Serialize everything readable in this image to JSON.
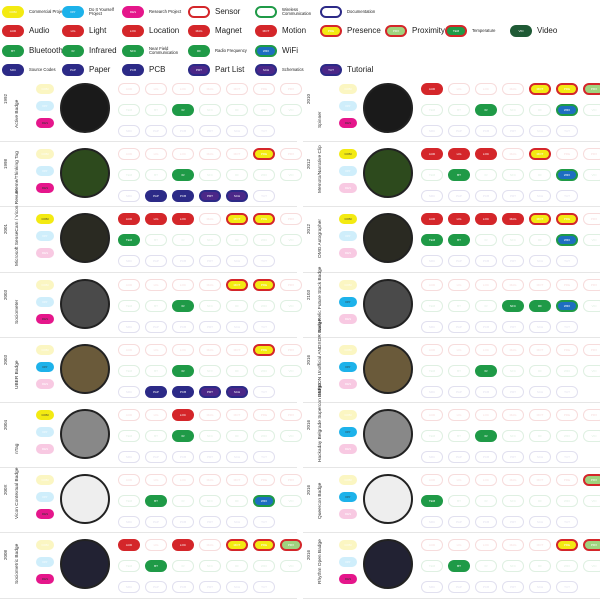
{
  "legend": [
    {
      "abbr": "COM",
      "label": "Commercial Project",
      "size": "small",
      "fill": "#f3ea12",
      "stroke": "#f3ea12"
    },
    {
      "abbr": "DIY",
      "label": "Do It Yourself Project",
      "size": "small",
      "fill": "#1db2ea",
      "stroke": "#1db2ea"
    },
    {
      "abbr": "RES",
      "label": "Research Project",
      "size": "small",
      "fill": "#e5168b",
      "stroke": "#e5168b"
    },
    {
      "abbr": "",
      "label": "Sensor",
      "size": "big",
      "fill": "#ffffff",
      "stroke": "#d4262a"
    },
    {
      "abbr": "",
      "label": "Wireless Communication",
      "size": "small",
      "fill": "#ffffff",
      "stroke": "#1f9a47"
    },
    {
      "abbr": "",
      "label": "Documentation",
      "size": "small",
      "fill": "#ffffff",
      "stroke": "#2c2a87"
    },
    {
      "abbr": "AUD",
      "label": "Audio",
      "size": "big",
      "fill": "#d4262a",
      "stroke": "#d4262a"
    },
    {
      "abbr": "LIG",
      "label": "Light",
      "size": "big",
      "fill": "#d4262a",
      "stroke": "#d4262a"
    },
    {
      "abbr": "LOC",
      "label": "Location",
      "size": "big",
      "fill": "#d4262a",
      "stroke": "#d4262a"
    },
    {
      "abbr": "MAG",
      "label": "Magnet",
      "size": "big",
      "fill": "#d4262a",
      "stroke": "#d4262a"
    },
    {
      "abbr": "MOT",
      "label": "Motion",
      "size": "big",
      "fill": "#d4262a",
      "stroke": "#d4262a"
    },
    {
      "abbr": "PRE",
      "label": "Presence",
      "size": "big",
      "fill": "#f3ea12",
      "stroke": "#d4262a"
    },
    {
      "abbr": "PRX",
      "label": "Proximity",
      "size": "big",
      "fill": "#9fd37f",
      "stroke": "#d4262a"
    },
    {
      "abbr": "TEM",
      "label": "Temperature",
      "size": "small",
      "fill": "#1f9a47",
      "stroke": "#d4262a"
    },
    {
      "abbr": "VID",
      "label": "Video",
      "size": "big",
      "fill": "#1f5a35",
      "stroke": "#1f5a35"
    },
    {
      "abbr": "BT",
      "label": "Bluetooth",
      "size": "big",
      "fill": "#1f9a47",
      "stroke": "#1f9a47"
    },
    {
      "abbr": "IR",
      "label": "Infrared",
      "size": "big",
      "fill": "#1f9a47",
      "stroke": "#1f9a47"
    },
    {
      "abbr": "NFC",
      "label": "Near Field Communication",
      "size": "small",
      "fill": "#1f9a47",
      "stroke": "#1f9a47"
    },
    {
      "abbr": "RF",
      "label": "Radio Frequency",
      "size": "small",
      "fill": "#1f9a47",
      "stroke": "#1f9a47"
    },
    {
      "abbr": "WIFI",
      "label": "WiFi",
      "size": "big",
      "fill": "#1d6ec0",
      "stroke": "#1f9a47"
    },
    {
      "abbr": "SRC",
      "label": "Source Codes",
      "size": "small",
      "fill": "#2c2a87",
      "stroke": "#2c2a87"
    },
    {
      "abbr": "PAP",
      "label": "Paper",
      "size": "big",
      "fill": "#2c2a87",
      "stroke": "#2c2a87"
    },
    {
      "abbr": "PCB",
      "label": "PCB",
      "size": "big",
      "fill": "#2c2a87",
      "stroke": "#2c2a87"
    },
    {
      "abbr": "PRT",
      "label": "Part List",
      "size": "big",
      "fill": "#4b2788",
      "stroke": "#2c2a87"
    },
    {
      "abbr": "SCH",
      "label": "Schematics",
      "size": "small",
      "fill": "#4b2788",
      "stroke": "#2c2a87"
    },
    {
      "abbr": "TUT",
      "label": "Tutorial",
      "size": "big",
      "fill": "#4b2788",
      "stroke": "#2c2a87"
    }
  ],
  "colors": {
    "sensor_faded": "#f7dcdc",
    "wireless_faded": "#dff0e2",
    "doc_faded": "#e1e0ef",
    "com": "#f3ea12",
    "diy": "#1db2ea",
    "res": "#e5168b",
    "type_faded_com": "#fbf6c2",
    "type_faded_diy": "#cfeefb",
    "type_faded_res": "#f8c9e2"
  },
  "projects": [
    {
      "name": "Active Badge",
      "year": "1992",
      "type": "RES",
      "sensors": [],
      "wireless": [
        "IR"
      ],
      "docs": []
    },
    {
      "name": "Meme/Thinking Tag",
      "year": "1998",
      "type": "RES",
      "sensors": [
        "PRE"
      ],
      "wireless": [
        "IR"
      ],
      "docs": [
        "PAP",
        "PCB",
        "PRT",
        "SCH"
      ]
    },
    {
      "name": "Microsoft SenseCam / Vicon Revue",
      "year": "2001",
      "type": "COM",
      "sensors": [
        "AUD",
        "LIG",
        "LOC",
        "MOT",
        "PRE"
      ],
      "wireless": [
        "TEM"
      ],
      "docs": []
    },
    {
      "name": "Sociometer",
      "year": "2003",
      "type": "RES",
      "sensors": [
        "MOT",
        "PRE"
      ],
      "wireless": [
        "IR"
      ],
      "docs": []
    },
    {
      "name": "UBER Badge",
      "year": "2003",
      "type": "DIY",
      "sensors": [
        "PRE"
      ],
      "wireless": [
        "IR"
      ],
      "docs": [
        "PAP",
        "PCB",
        "PRT",
        "SCH"
      ]
    },
    {
      "name": "nTag",
      "year": "2004",
      "type": "COM",
      "sensors": [
        "LOC"
      ],
      "wireless": [
        "IR"
      ],
      "docs": []
    },
    {
      "name": "Vicon Contextual Badge",
      "year": "200X",
      "type": "RES",
      "sensors": [],
      "wireless": [
        "WIFI",
        "BT"
      ],
      "docs": []
    },
    {
      "name": "Sociometric Badge",
      "year": "2008",
      "type": "RES",
      "sensors": [
        "AUD",
        "LOC",
        "MOT",
        "PRE",
        "PRX"
      ],
      "wireless": [
        "BT"
      ],
      "docs": []
    },
    {
      "name": "Spinner",
      "year": "2010",
      "type": "RES",
      "sensors": [
        "AUD",
        "MOT",
        "PRE",
        "PRX"
      ],
      "wireless": [
        "IR",
        "WIFI"
      ],
      "docs": []
    },
    {
      "name": "Memoto/Narrative Clip",
      "year": "2012",
      "type": "COM",
      "sensors": [
        "AUD",
        "LIG",
        "LOC",
        "MOT"
      ],
      "wireless": [
        "BT",
        "WIFI"
      ],
      "docs": []
    },
    {
      "name": "OMG Autographer",
      "year": "2012",
      "type": "COM",
      "sensors": [
        "AUD",
        "LIG",
        "LOC",
        "MAG",
        "MOT",
        "PRE"
      ],
      "wireless": [
        "TEM",
        "BT",
        "WIFI"
      ],
      "docs": []
    },
    {
      "name": "New Relic Future Stack Badge",
      "year": "2103",
      "type": "DIY",
      "sensors": [],
      "wireless": [
        "NFC",
        "RF",
        "WIFI"
      ],
      "docs": []
    },
    {
      "name": "DEFCON Unofficial ANDXOR Badge",
      "year": "2016",
      "type": "DIY",
      "sensors": [],
      "wireless": [
        "IR"
      ],
      "docs": []
    },
    {
      "name": "Hackaday Belgrade Supercon Badge",
      "year": "2016",
      "type": "DIY",
      "sensors": [],
      "wireless": [
        "IR"
      ],
      "docs": []
    },
    {
      "name": "Queercon Badge",
      "year": "2016",
      "type": "DIY",
      "sensors": [
        "PRX"
      ],
      "wireless": [
        "TEM"
      ],
      "docs": []
    },
    {
      "name": "Rhythm Open Badge",
      "year": "2016",
      "type": "RES",
      "sensors": [
        "PRE",
        "PRX"
      ],
      "wireless": [
        "BT"
      ],
      "docs": []
    }
  ],
  "grid_sensor_order": [
    "AUD",
    "LIG",
    "LOC",
    "MAG",
    "MOT",
    "PRE",
    "PRX"
  ],
  "grid_wireless_order": [
    "TEM",
    "BT",
    "IR",
    "NFC",
    "RF",
    "WIFI",
    "VID"
  ],
  "grid_doc_order": [
    "SRC",
    "PAP",
    "PCB",
    "PRT",
    "SCH",
    "TUT"
  ]
}
